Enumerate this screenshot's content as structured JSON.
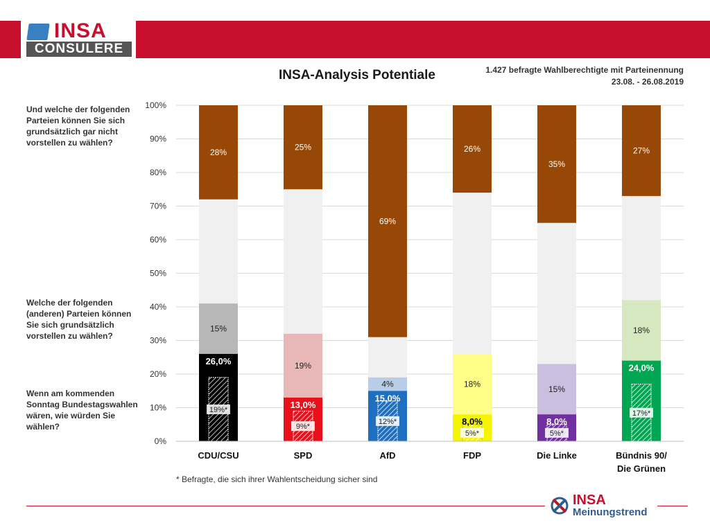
{
  "header": {
    "logo_top": "INSA",
    "logo_bottom": "CONSULERE",
    "sample_info": "1.427 befragte Wahlberechtigte mit Parteinennung",
    "date_range": "23.08. - 26.08.2019"
  },
  "questions": {
    "q_not_vote": "Und welche der folgenden Parteien können Sie sich grundsätzlich gar nicht vorstellen zu wählen?",
    "q_could_vote": "Welche der folgenden (anderen) Parteien können Sie sich grundsätzlich vorstellen zu wählen?",
    "q_sunday": "Wenn am kommenden Sonntag Bundestagswahlen wären, wie würden Sie wählen?"
  },
  "footnote": "* Befragte, die sich ihrer Wahlentscheidung sicher sind",
  "brand": {
    "name": "INSA",
    "tagline": "Meinungstrend"
  },
  "chart_data": {
    "type": "bar",
    "title": "INSA-Analysis Potentiale",
    "stacked": true,
    "ylim": [
      0,
      100
    ],
    "y_ticks": [
      "0%",
      "10%",
      "20%",
      "30%",
      "40%",
      "50%",
      "60%",
      "70%",
      "80%",
      "90%",
      "100%"
    ],
    "grid": true,
    "categories": [
      "CDU/CSU",
      "SPD",
      "AfD",
      "FDP",
      "Die Linke",
      "Bündnis 90/ Die Grünen"
    ],
    "sunday_vote": [
      26.0,
      13.0,
      15.0,
      8.0,
      8.0,
      24.0
    ],
    "sunday_vote_labels": [
      "26,0%",
      "13,0%",
      "15,0%",
      "8,0%",
      "8,0%",
      "24,0%"
    ],
    "certain_voters": [
      19,
      9,
      12,
      5,
      5,
      17
    ],
    "certain_voters_labels": [
      "19%*",
      "9%*",
      "12%*",
      "5%*",
      "5%*",
      "17%*"
    ],
    "potential": [
      15,
      19,
      4,
      18,
      15,
      18
    ],
    "potential_labels": [
      "15%",
      "19%",
      "4%",
      "18%",
      "15%",
      "18%"
    ],
    "rejection": [
      28,
      25,
      69,
      26,
      35,
      27
    ],
    "rejection_labels": [
      "28%",
      "25%",
      "69%",
      "26%",
      "35%",
      "27%"
    ],
    "colors": {
      "party": [
        "#000000",
        "#e8101a",
        "#1f6fc0",
        "#f5f500",
        "#7030a0",
        "#00a651"
      ],
      "potential": [
        "#b7b7b7",
        "#e8b8b8",
        "#b7cde8",
        "#ffff88",
        "#cbbfe0",
        "#d6e8c0"
      ],
      "middle": "#f0f0f0",
      "rejection": "#974706"
    }
  }
}
